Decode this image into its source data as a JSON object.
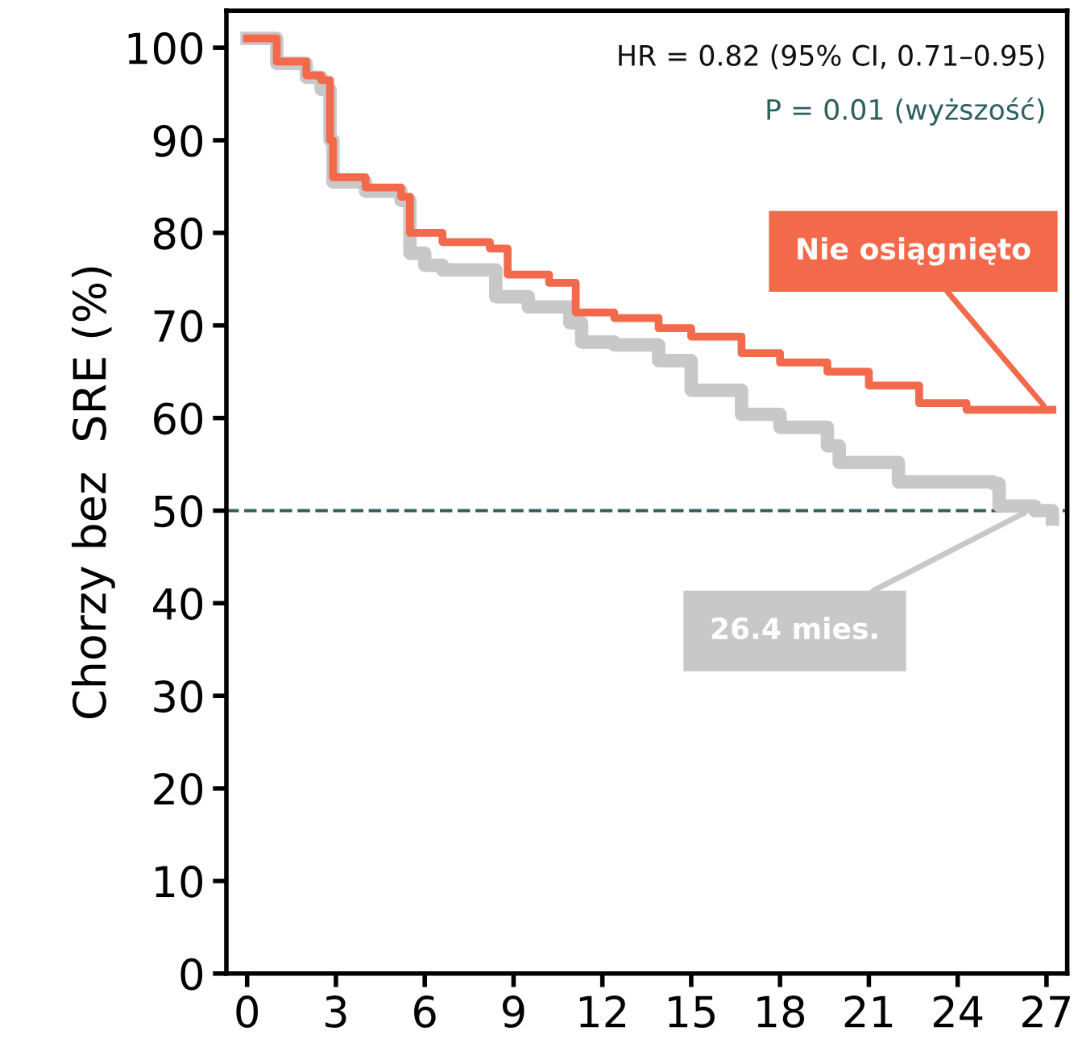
{
  "chart_data": {
    "type": "step",
    "ylabel": "Chorzy bez  SRE (%)",
    "xlim": [
      -0.7,
      27.7
    ],
    "ylim": [
      0,
      104
    ],
    "xticks": [
      0,
      3,
      6,
      9,
      12,
      15,
      18,
      21,
      24,
      27
    ],
    "yticks": [
      0,
      10,
      20,
      30,
      40,
      50,
      60,
      70,
      80,
      90,
      100
    ],
    "grid": false,
    "legend": false,
    "line_style": "solid",
    "marker": "none",
    "series": [
      {
        "color": "#c8c8c8",
        "x": [
          0,
          1,
          2,
          2.5,
          2.8,
          2.9,
          4,
          5.2,
          5.5,
          6,
          6.6,
          8.4,
          9.5,
          10.9,
          11.3,
          12.4,
          13.9,
          15,
          16.7,
          18,
          19.6,
          20,
          22,
          25.2,
          25.4,
          26.6,
          27.2
        ],
        "values": [
          101,
          98.3,
          96.8,
          95.5,
          90,
          85.5,
          84.5,
          83.5,
          77.8,
          76.5,
          76,
          73.1,
          72,
          70.3,
          68.2,
          67.9,
          66.2,
          63,
          60.4,
          59,
          57,
          55.2,
          53.1,
          52.9,
          50.5,
          50,
          49.1
        ]
      },
      {
        "color": "#f26a4b",
        "x": [
          0,
          1,
          2,
          2.5,
          2.8,
          2.9,
          4,
          5.2,
          5.5,
          6.6,
          8.2,
          8.8,
          10.2,
          11.1,
          12.4,
          13.9,
          15,
          16.7,
          18,
          19.6,
          21,
          22.7,
          24.3,
          27.2
        ],
        "values": [
          101,
          98.5,
          97,
          96.5,
          90,
          86,
          84.9,
          83.9,
          80,
          79,
          78.3,
          75.5,
          74.6,
          71.4,
          70.8,
          69.7,
          68.8,
          67,
          66,
          65,
          63.5,
          61.6,
          60.9,
          60.9
        ]
      }
    ],
    "ref_lines": [
      {
        "axis": "y",
        "value": 50,
        "color": "#2e6060",
        "line_style": "dashed"
      }
    ],
    "annotations": [
      "HR = 0.82 (95% CI, 0.71–0.95)",
      "P = 0.01 (wyższość)",
      {
        "text": "Nie osiągnięto",
        "x": 27,
        "y": 61
      },
      {
        "text": "26.4 mies.",
        "x": 26.4,
        "y": 50
      }
    ]
  }
}
